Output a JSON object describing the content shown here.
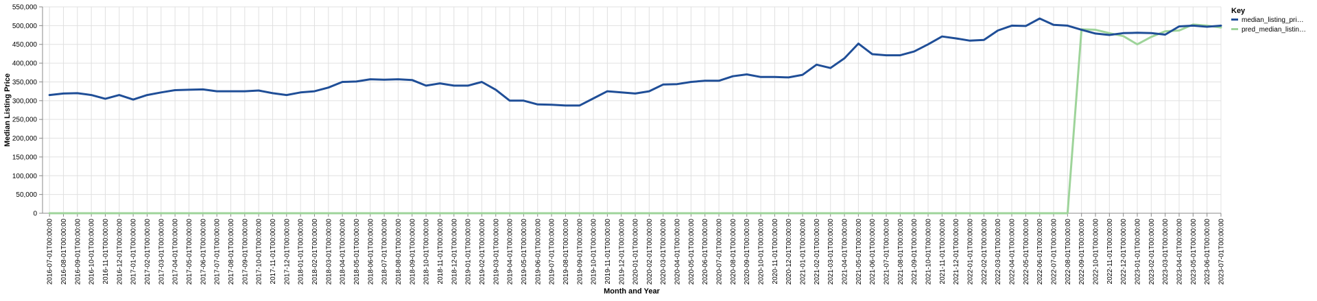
{
  "chart_data": {
    "type": "line",
    "title": "",
    "xlabel": "Month and Year",
    "ylabel": "Median Listing Price",
    "ylim": [
      0,
      550000
    ],
    "yticks": [
      0,
      50000,
      100000,
      150000,
      200000,
      250000,
      300000,
      350000,
      400000,
      450000,
      500000,
      550000
    ],
    "ytick_labels": [
      "0",
      "50,000",
      "100,000",
      "150,000",
      "200,000",
      "250,000",
      "300,000",
      "350,000",
      "400,000",
      "450,000",
      "500,000",
      "550,000"
    ],
    "grid": true,
    "legend": {
      "title": "Key",
      "placement": "right",
      "entries": [
        "median_listing_pri…",
        "pred_median_listin…"
      ]
    },
    "x": [
      "2016-07-01T00:00:00",
      "2016-08-01T00:00:00",
      "2016-09-01T00:00:00",
      "2016-10-01T00:00:00",
      "2016-11-01T00:00:00",
      "2016-12-01T00:00:00",
      "2017-01-01T00:00:00",
      "2017-02-01T00:00:00",
      "2017-03-01T00:00:00",
      "2017-04-01T00:00:00",
      "2017-05-01T00:00:00",
      "2017-06-01T00:00:00",
      "2017-07-01T00:00:00",
      "2017-08-01T00:00:00",
      "2017-09-01T00:00:00",
      "2017-10-01T00:00:00",
      "2017-11-01T00:00:00",
      "2017-12-01T00:00:00",
      "2018-01-01T00:00:00",
      "2018-02-01T00:00:00",
      "2018-03-01T00:00:00",
      "2018-04-01T00:00:00",
      "2018-05-01T00:00:00",
      "2018-06-01T00:00:00",
      "2018-07-01T00:00:00",
      "2018-08-01T00:00:00",
      "2018-09-01T00:00:00",
      "2018-10-01T00:00:00",
      "2018-11-01T00:00:00",
      "2018-12-01T00:00:00",
      "2019-01-01T00:00:00",
      "2019-02-01T00:00:00",
      "2019-03-01T00:00:00",
      "2019-04-01T00:00:00",
      "2019-05-01T00:00:00",
      "2019-06-01T00:00:00",
      "2019-07-01T00:00:00",
      "2019-08-01T00:00:00",
      "2019-09-01T00:00:00",
      "2019-10-01T00:00:00",
      "2019-11-01T00:00:00",
      "2019-12-01T00:00:00",
      "2020-01-01T00:00:00",
      "2020-02-01T00:00:00",
      "2020-03-01T00:00:00",
      "2020-04-01T00:00:00",
      "2020-05-01T00:00:00",
      "2020-06-01T00:00:00",
      "2020-07-01T00:00:00",
      "2020-08-01T00:00:00",
      "2020-09-01T00:00:00",
      "2020-10-01T00:00:00",
      "2020-11-01T00:00:00",
      "2020-12-01T00:00:00",
      "2021-01-01T00:00:00",
      "2021-02-01T00:00:00",
      "2021-03-01T00:00:00",
      "2021-04-01T00:00:00",
      "2021-05-01T00:00:00",
      "2021-06-01T00:00:00",
      "2021-07-01T00:00:00",
      "2021-08-01T00:00:00",
      "2021-09-01T00:00:00",
      "2021-10-01T00:00:00",
      "2021-11-01T00:00:00",
      "2021-12-01T00:00:00",
      "2022-01-01T00:00:00",
      "2022-02-01T00:00:00",
      "2022-03-01T00:00:00",
      "2022-04-01T00:00:00",
      "2022-05-01T00:00:00",
      "2022-06-01T00:00:00",
      "2022-07-01T00:00:00",
      "2022-08-01T00:00:00",
      "2022-09-01T00:00:00",
      "2022-10-01T00:00:00",
      "2022-11-01T00:00:00",
      "2022-12-01T00:00:00",
      "2023-01-01T00:00:00",
      "2023-02-01T00:00:00",
      "2023-03-01T00:00:00",
      "2023-04-01T00:00:00",
      "2023-05-01T00:00:00",
      "2023-06-01T00:00:00",
      "2023-07-01T00:00:00"
    ],
    "series": [
      {
        "name": "median_listing_pri…",
        "color": "#1f4e97",
        "values": [
          315000,
          319000,
          320000,
          315000,
          305000,
          315000,
          303000,
          315000,
          322000,
          328000,
          329000,
          330000,
          325000,
          325000,
          325000,
          327000,
          320000,
          315000,
          322000,
          325000,
          335000,
          350000,
          351000,
          357000,
          356000,
          357000,
          355000,
          340000,
          346000,
          340000,
          340000,
          350000,
          329000,
          300000,
          300000,
          290000,
          289000,
          287000,
          287000,
          306000,
          325000,
          322000,
          319000,
          325000,
          343000,
          344000,
          350000,
          353000,
          353000,
          365000,
          370000,
          363000,
          363000,
          362000,
          369000,
          396000,
          387000,
          413000,
          452000,
          424000,
          421000,
          421000,
          431000,
          450000,
          471000,
          466000,
          460000,
          462000,
          487000,
          500000,
          499000,
          519000,
          502000,
          500000,
          489000,
          479000,
          475000,
          480000,
          481000,
          480000,
          476000,
          498000,
          500000,
          497000,
          500000
        ]
      },
      {
        "name": "pred_median_listin…",
        "color": "#9ed49a",
        "values": [
          0,
          0,
          0,
          0,
          0,
          0,
          0,
          0,
          0,
          0,
          0,
          0,
          0,
          0,
          0,
          0,
          0,
          0,
          0,
          0,
          0,
          0,
          0,
          0,
          0,
          0,
          0,
          0,
          0,
          0,
          0,
          0,
          0,
          0,
          0,
          0,
          0,
          0,
          0,
          0,
          0,
          0,
          0,
          0,
          0,
          0,
          0,
          0,
          0,
          0,
          0,
          0,
          0,
          0,
          0,
          0,
          0,
          0,
          0,
          0,
          0,
          0,
          0,
          0,
          0,
          0,
          0,
          0,
          0,
          0,
          0,
          0,
          0,
          0,
          490000,
          489000,
          480000,
          472000,
          450000,
          470000,
          485000,
          487000,
          503000,
          500000,
          495000
        ]
      }
    ]
  }
}
